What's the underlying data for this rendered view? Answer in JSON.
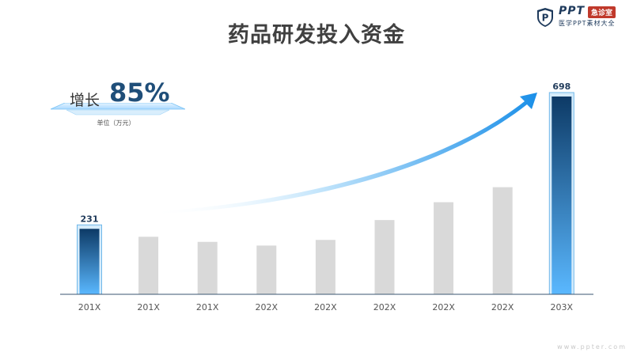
{
  "title": "药品研发投入资金",
  "logo": {
    "icon": "shield-p-icon",
    "brand": "PPT",
    "badge": "急诊室",
    "subtitle": "医学PPT素材大全"
  },
  "growth": {
    "label": "增长",
    "value": "85%",
    "unit": "单位（万元）"
  },
  "watermark": "www.ppter.com",
  "colors": {
    "highlight_top": "#0d3a66",
    "highlight_bottom": "#5ab8ff",
    "grey_bar": "#d9d9d9",
    "arrow": "#1a8fe8",
    "axis": "#3a5670"
  },
  "chart_data": {
    "type": "bar",
    "categories": [
      "201X",
      "201X",
      "201X",
      "202X",
      "202X",
      "202X",
      "202X",
      "202X",
      "203X"
    ],
    "values": [
      231,
      203,
      185,
      172,
      192,
      262,
      325,
      378,
      698
    ],
    "highlighted": [
      0,
      8
    ],
    "data_labels": [
      "231",
      "",
      "",
      "",
      "",
      "",
      "",
      "",
      "698"
    ],
    "ylim": [
      0,
      698
    ],
    "grid": false,
    "annotation": "rising arrow from first to last bar"
  }
}
